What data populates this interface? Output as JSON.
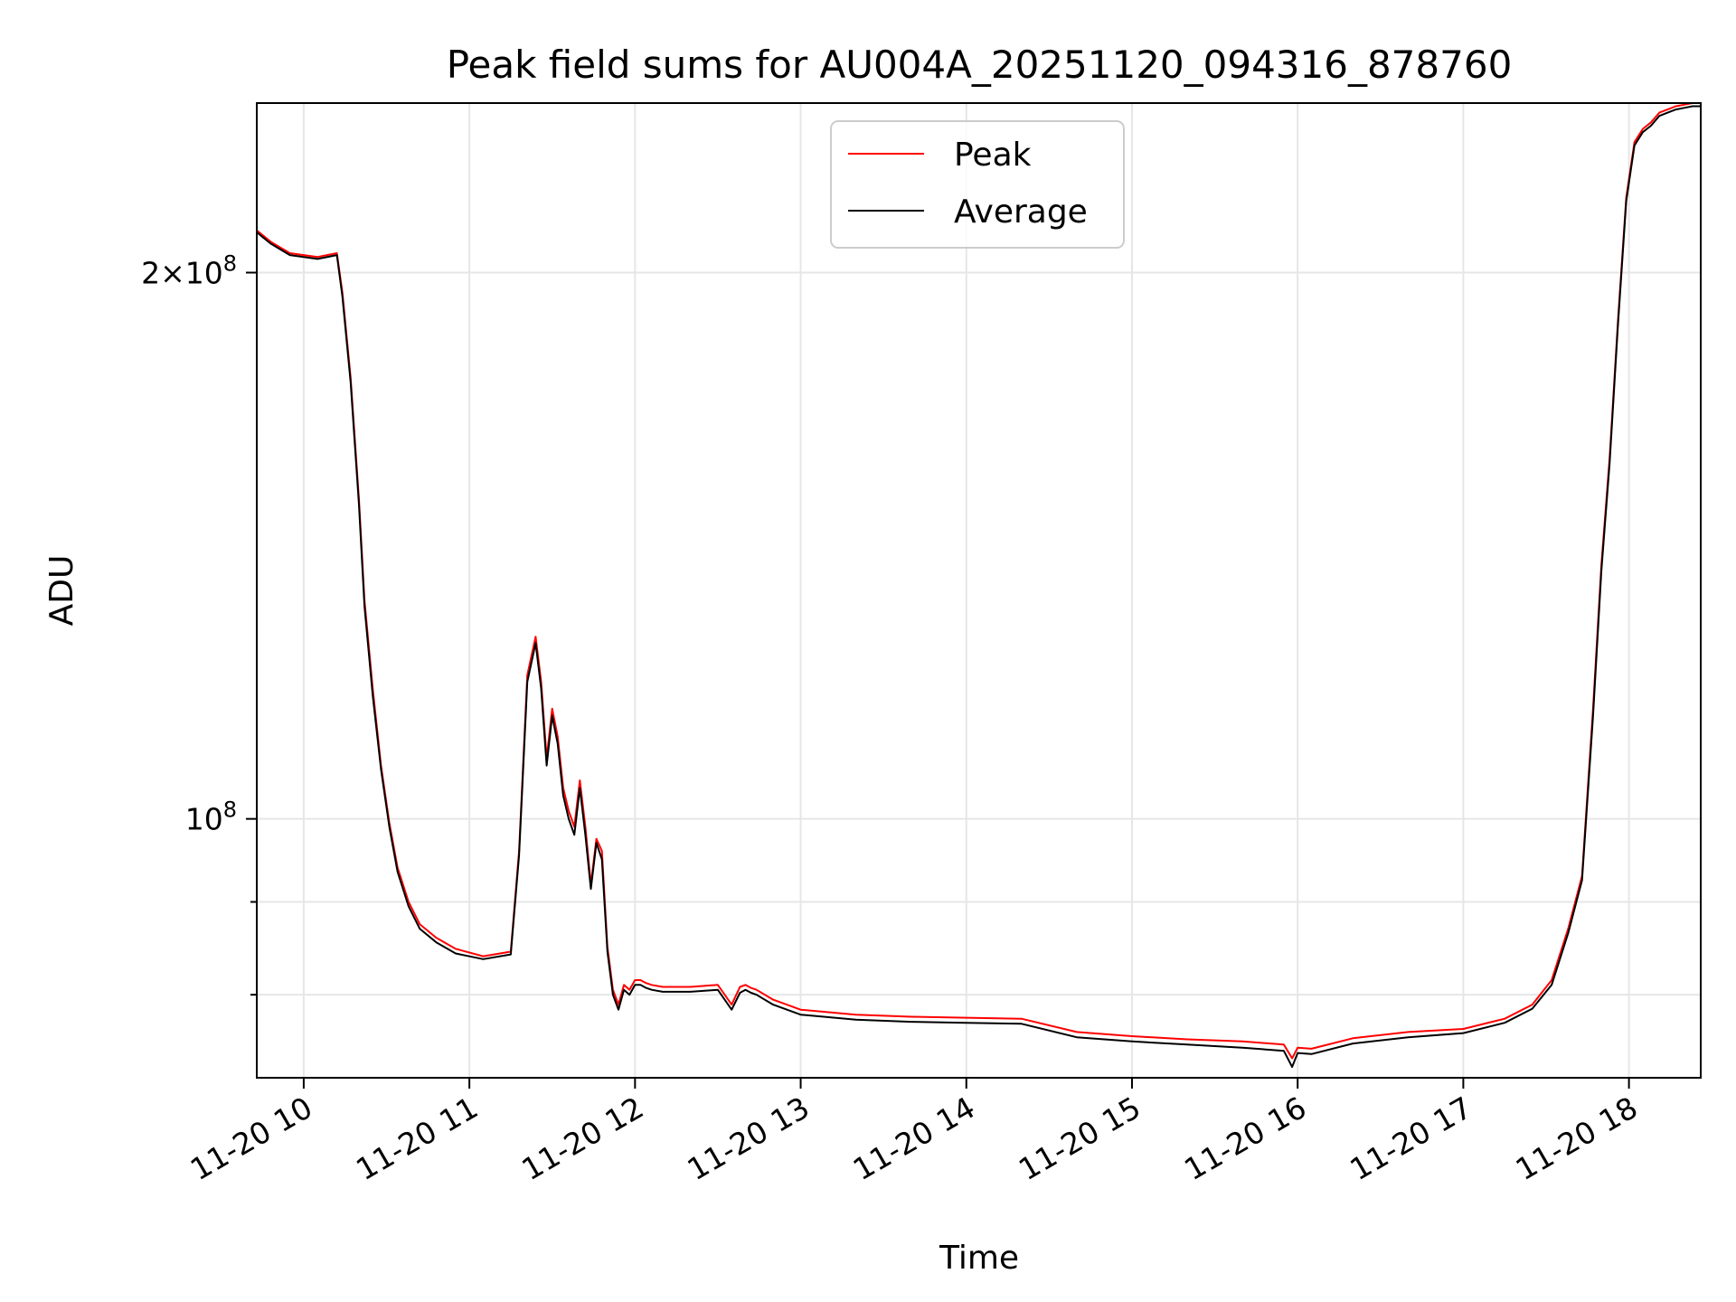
{
  "chart_data": {
    "type": "line",
    "title": "Peak field sums for AU004A_20251120_094316_878760",
    "xlabel": "Time",
    "ylabel": "ADU",
    "yscale": "log",
    "grid": true,
    "legend_placement": "upper center",
    "x_range": [
      "11-20 09:43",
      "11-20 18:26"
    ],
    "ylim": [
      72000000,
      248000000
    ],
    "x_ticks": [
      {
        "label": "11-20 10",
        "time": "11-20 10:00"
      },
      {
        "label": "11-20 11",
        "time": "11-20 11:00"
      },
      {
        "label": "11-20 12",
        "time": "11-20 12:00"
      },
      {
        "label": "11-20 13",
        "time": "11-20 13:00"
      },
      {
        "label": "11-20 14",
        "time": "11-20 14:00"
      },
      {
        "label": "11-20 15",
        "time": "11-20 15:00"
      },
      {
        "label": "11-20 16",
        "time": "11-20 16:00"
      },
      {
        "label": "11-20 17",
        "time": "11-20 17:00"
      },
      {
        "label": "11-20 18",
        "time": "11-20 18:00"
      }
    ],
    "y_ticks": [
      {
        "base": "10",
        "exp": "8",
        "prefix": "",
        "value": 100000000
      },
      {
        "base": "10",
        "exp": "8",
        "prefix": "2×",
        "value": 200000000
      }
    ],
    "y_minor_ticks": [
      80000000,
      90000000
    ],
    "series": [
      {
        "name": "Peak",
        "color": "#ff0000",
        "x": [
          "11-20 09:43",
          "11-20 09:48",
          "11-20 09:55",
          "11-20 10:05",
          "11-20 10:12",
          "11-20 10:14",
          "11-20 10:17",
          "11-20 10:20",
          "11-20 10:22",
          "11-20 10:25",
          "11-20 10:28",
          "11-20 10:31",
          "11-20 10:34",
          "11-20 10:38",
          "11-20 10:42",
          "11-20 10:48",
          "11-20 10:55",
          "11-20 11:05",
          "11-20 11:15",
          "11-20 11:18",
          "11-20 11:21",
          "11-20 11:24",
          "11-20 11:26",
          "11-20 11:28",
          "11-20 11:30",
          "11-20 11:32",
          "11-20 11:34",
          "11-20 11:36",
          "11-20 11:38",
          "11-20 11:40",
          "11-20 11:42",
          "11-20 11:44",
          "11-20 11:46",
          "11-20 11:48",
          "11-20 11:50",
          "11-20 11:52",
          "11-20 11:54",
          "11-20 11:56",
          "11-20 11:58",
          "11-20 12:00",
          "11-20 12:02",
          "11-20 12:04",
          "11-20 12:06",
          "11-20 12:10",
          "11-20 12:20",
          "11-20 12:30",
          "11-20 12:35",
          "11-20 12:38",
          "11-20 12:40",
          "11-20 12:42",
          "11-20 12:44",
          "11-20 12:50",
          "11-20 13:00",
          "11-20 13:20",
          "11-20 13:40",
          "11-20 14:00",
          "11-20 14:20",
          "11-20 14:40",
          "11-20 15:00",
          "11-20 15:20",
          "11-20 15:40",
          "11-20 15:55",
          "11-20 15:58",
          "11-20 16:00",
          "11-20 16:05",
          "11-20 16:20",
          "11-20 16:40",
          "11-20 17:00",
          "11-20 17:15",
          "11-20 17:25",
          "11-20 17:32",
          "11-20 17:38",
          "11-20 17:43",
          "11-20 17:47",
          "11-20 17:50",
          "11-20 17:53",
          "11-20 17:56",
          "11-20 17:59",
          "11-20 18:02",
          "11-20 18:05",
          "11-20 18:08",
          "11-20 18:11",
          "11-20 18:14",
          "11-20 18:17",
          "11-20 18:20",
          "11-20 18:23",
          "11-20 18:26"
        ],
        "y": [
          211000000,
          208000000,
          205000000,
          204000000,
          205000000,
          195000000,
          175000000,
          150000000,
          132000000,
          118000000,
          107000000,
          99500000,
          94000000,
          90000000,
          87500000,
          86000000,
          84800000,
          84000000,
          84500000,
          96000000,
          120000000,
          126000000,
          119000000,
          108000000,
          115000000,
          111000000,
          104000000,
          101000000,
          99000000,
          105000000,
          99000000,
          92000000,
          97500000,
          96000000,
          85000000,
          80500000,
          79000000,
          81000000,
          80500000,
          81500000,
          81500000,
          81200000,
          81000000,
          80800000,
          80800000,
          81000000,
          79000000,
          80800000,
          81000000,
          80700000,
          80500000,
          79500000,
          78500000,
          78000000,
          77800000,
          77700000,
          77600000,
          76300000,
          75900000,
          75600000,
          75400000,
          75100000,
          73800000,
          74800000,
          74700000,
          75700000,
          76300000,
          76600000,
          77600000,
          79000000,
          81500000,
          87000000,
          93000000,
          115000000,
          138000000,
          158000000,
          188000000,
          220000000,
          236000000,
          240000000,
          242000000,
          245000000,
          246000000,
          247000000,
          247500000,
          248000000,
          248000000
        ]
      },
      {
        "name": "Average",
        "color": "#000000",
        "x": [
          "11-20 09:43",
          "11-20 09:48",
          "11-20 09:55",
          "11-20 10:05",
          "11-20 10:12",
          "11-20 10:14",
          "11-20 10:17",
          "11-20 10:20",
          "11-20 10:22",
          "11-20 10:25",
          "11-20 10:28",
          "11-20 10:31",
          "11-20 10:34",
          "11-20 10:38",
          "11-20 10:42",
          "11-20 10:48",
          "11-20 10:55",
          "11-20 11:05",
          "11-20 11:15",
          "11-20 11:18",
          "11-20 11:21",
          "11-20 11:24",
          "11-20 11:26",
          "11-20 11:28",
          "11-20 11:30",
          "11-20 11:32",
          "11-20 11:34",
          "11-20 11:36",
          "11-20 11:38",
          "11-20 11:40",
          "11-20 11:42",
          "11-20 11:44",
          "11-20 11:46",
          "11-20 11:48",
          "11-20 11:50",
          "11-20 11:52",
          "11-20 11:54",
          "11-20 11:56",
          "11-20 11:58",
          "11-20 12:00",
          "11-20 12:02",
          "11-20 12:04",
          "11-20 12:06",
          "11-20 12:10",
          "11-20 12:20",
          "11-20 12:30",
          "11-20 12:35",
          "11-20 12:38",
          "11-20 12:40",
          "11-20 12:42",
          "11-20 12:44",
          "11-20 12:50",
          "11-20 13:00",
          "11-20 13:20",
          "11-20 13:40",
          "11-20 14:00",
          "11-20 14:20",
          "11-20 14:40",
          "11-20 15:00",
          "11-20 15:20",
          "11-20 15:40",
          "11-20 15:55",
          "11-20 15:58",
          "11-20 16:00",
          "11-20 16:05",
          "11-20 16:20",
          "11-20 16:40",
          "11-20 17:00",
          "11-20 17:15",
          "11-20 17:25",
          "11-20 17:32",
          "11-20 17:38",
          "11-20 17:43",
          "11-20 17:47",
          "11-20 17:50",
          "11-20 17:53",
          "11-20 17:56",
          "11-20 17:59",
          "11-20 18:02",
          "11-20 18:05",
          "11-20 18:08",
          "11-20 18:11",
          "11-20 18:14",
          "11-20 18:17",
          "11-20 18:20",
          "11-20 18:23",
          "11-20 18:26"
        ],
        "y": [
          210500000,
          207500000,
          204500000,
          203500000,
          204500000,
          194000000,
          174000000,
          149000000,
          131000000,
          117000000,
          106500000,
          99000000,
          93500000,
          89500000,
          87000000,
          85500000,
          84300000,
          83700000,
          84200000,
          95500000,
          119000000,
          125000000,
          118000000,
          107000000,
          114000000,
          110000000,
          103000000,
          100000000,
          98000000,
          104000000,
          98000000,
          91500000,
          97000000,
          95000000,
          84500000,
          80000000,
          78500000,
          80500000,
          80000000,
          81000000,
          81000000,
          80700000,
          80500000,
          80300000,
          80300000,
          80500000,
          78500000,
          80200000,
          80500000,
          80200000,
          80000000,
          79000000,
          78000000,
          77500000,
          77300000,
          77200000,
          77100000,
          75800000,
          75400000,
          75100000,
          74800000,
          74500000,
          73000000,
          74300000,
          74200000,
          75200000,
          75800000,
          76200000,
          77200000,
          78600000,
          81000000,
          86500000,
          92500000,
          114000000,
          137000000,
          157000000,
          187000000,
          219000000,
          235000000,
          239000000,
          241000000,
          244000000,
          245000000,
          246000000,
          246500000,
          247000000,
          247000000
        ]
      }
    ]
  }
}
